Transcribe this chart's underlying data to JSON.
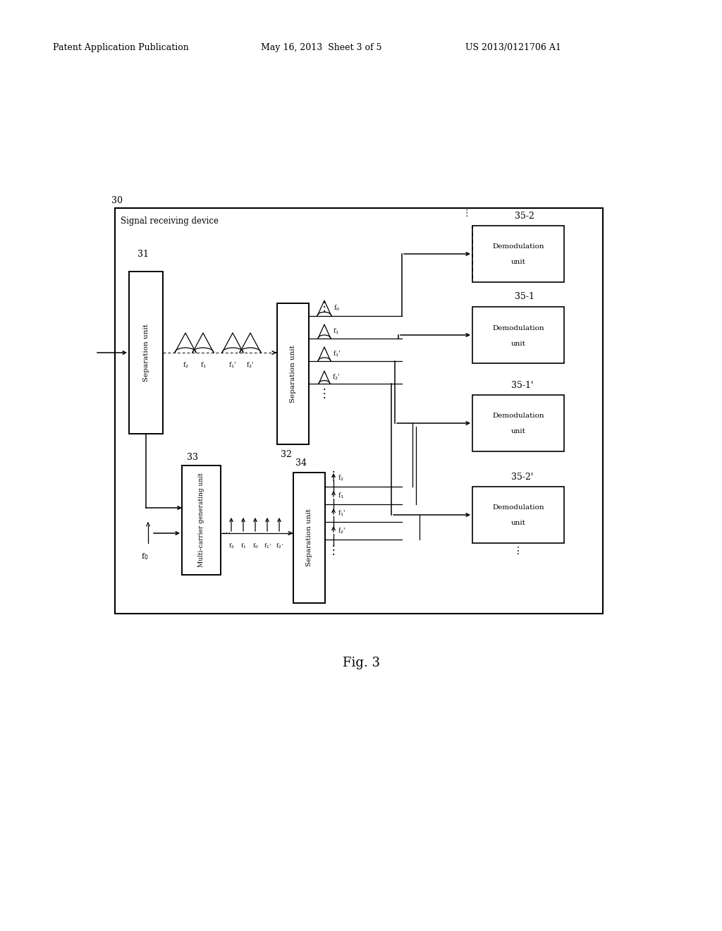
{
  "bg_color": "#ffffff",
  "header_left": "Patent Application Publication",
  "header_mid": "May 16, 2013  Sheet 3 of 5",
  "header_right": "US 2013/0121706 A1",
  "fig_label": "Fig. 3"
}
